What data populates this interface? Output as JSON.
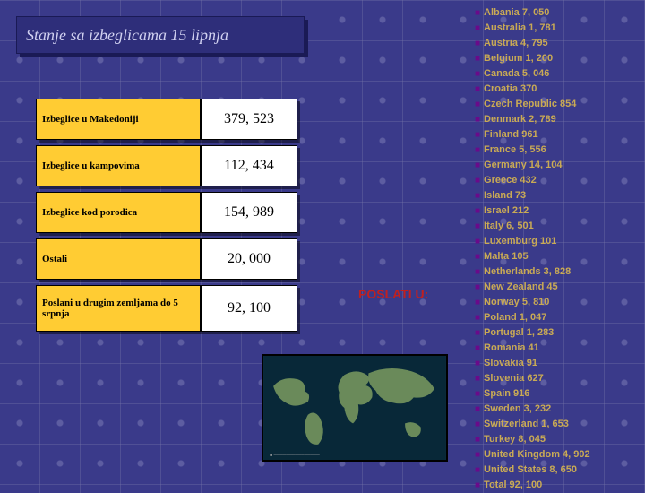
{
  "title": "Stanje sa izbeglicama  15 lipnja",
  "table": {
    "rows": [
      {
        "label": "Izbeglice u Makedoniji",
        "value": "379, 523"
      },
      {
        "label": "Izbeglice u kampovima",
        "value": "112, 434"
      },
      {
        "label": "Izbeglice kod porodica",
        "value": "154, 989"
      },
      {
        "label": "Ostali",
        "value": "20, 000"
      },
      {
        "label": "Poslani u drugim zemljama do 5 srpnja",
        "value": "92, 100"
      }
    ]
  },
  "poslati_label": "POSLATI U:",
  "countries": [
    {
      "name": "Albania",
      "count": "7, 050"
    },
    {
      "name": "Australia",
      "count": "1, 781"
    },
    {
      "name": "Austria",
      "count": "4, 795"
    },
    {
      "name": "Belgium",
      "count": "1, 200"
    },
    {
      "name": "Canada",
      "count": "5, 046"
    },
    {
      "name": "Croatia",
      "count": "370"
    },
    {
      "name": "Czech Republic",
      "count": "854"
    },
    {
      "name": "Denmark",
      "count": "2, 789"
    },
    {
      "name": "Finland",
      "count": "961"
    },
    {
      "name": "France",
      "count": "5, 556"
    },
    {
      "name": "Germany",
      "count": "14, 104"
    },
    {
      "name": "Greece",
      "count": "432"
    },
    {
      "name": "Island",
      "count": "73"
    },
    {
      "name": "Israel",
      "count": "212"
    },
    {
      "name": "Italy",
      "count": "6, 501"
    },
    {
      "name": "Luxemburg",
      "count": "101"
    },
    {
      "name": "Malta",
      "count": "105"
    },
    {
      "name": "Netherlands",
      "count": "3, 828"
    },
    {
      "name": "New Zealand",
      "count": "45"
    },
    {
      "name": "Norway",
      "count": "5, 810"
    },
    {
      "name": "Poland",
      "count": " 1, 047"
    },
    {
      "name": "Portugal",
      "count": "1, 283"
    },
    {
      "name": "Romania",
      "count": "41"
    },
    {
      "name": "Slovakia",
      "count": "91"
    },
    {
      "name": "Slovenia",
      "count": "627"
    },
    {
      "name": "Spain",
      "count": "916"
    },
    {
      "name": "Sweden",
      "count": "3, 232"
    },
    {
      "name": "Switzerland",
      "count": "1, 653"
    },
    {
      "name": "Turkey",
      "count": "8, 045"
    },
    {
      "name": "United Kingdom",
      "count": "4, 902"
    },
    {
      "name": "United States",
      "count": "8, 650"
    },
    {
      "name": "Total",
      "count": "92, 100"
    }
  ],
  "colors": {
    "country_text": "#c9aa55",
    "bullet": "#6a0a8a",
    "title_text": "#d0d0f0",
    "label_bg": "#ffcc33",
    "arrow": "#c02020"
  }
}
